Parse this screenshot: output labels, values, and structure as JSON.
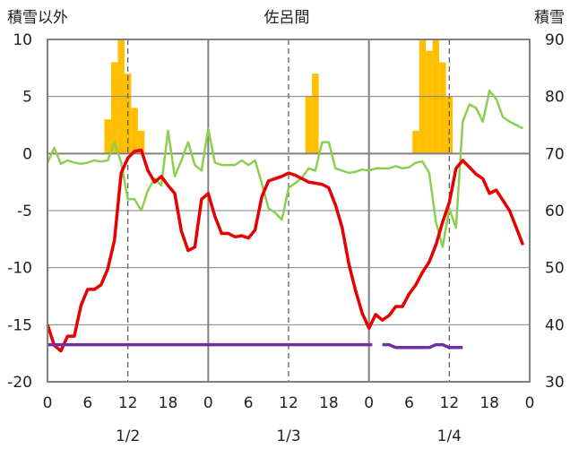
{
  "chart_data": {
    "type": "line",
    "title": "佐呂間",
    "y_left_label": "積雪以外",
    "y_right_label": "積雪",
    "y_left_range": [
      -20,
      10
    ],
    "y_left_ticks": [
      "10",
      "5",
      "0",
      "-5",
      "-10",
      "-15",
      "-20"
    ],
    "y_right_range": [
      30,
      90
    ],
    "y_right_ticks": [
      "90",
      "80",
      "70",
      "60",
      "50",
      "40",
      "30"
    ],
    "x_hour_labels": [
      "0",
      "6",
      "12",
      "18",
      "0",
      "6",
      "12",
      "18",
      "0",
      "6",
      "12",
      "18",
      "0"
    ],
    "x_date_labels": [
      "1/2",
      "1/3",
      "1/4"
    ],
    "grid": true,
    "colors": {
      "temperature": "#e60000",
      "wind": "#8ccf50",
      "precipitation": "#ffbf00",
      "snow_depth": "#7030a0",
      "grid": "#808080"
    },
    "series": [
      {
        "key": "temperature",
        "axis": "left",
        "x_hours": [
          0,
          1,
          2,
          3,
          4,
          5,
          6,
          7,
          8,
          9,
          10,
          11,
          12,
          13,
          14,
          15,
          16,
          17,
          18,
          19,
          20,
          21,
          22,
          23,
          24,
          25,
          26,
          27,
          28,
          29,
          30,
          31,
          32,
          33,
          34,
          35,
          36,
          37,
          38,
          39,
          40,
          41,
          42,
          43,
          44,
          45,
          46,
          47,
          48,
          49,
          50,
          51,
          52,
          53,
          54,
          55,
          56,
          57,
          58,
          59,
          60,
          61,
          62,
          63,
          64,
          65,
          66,
          67,
          68,
          69,
          70,
          71
        ],
        "values": [
          -15,
          -16.8,
          -17.3,
          -16,
          -16,
          -13.3,
          -11.9,
          -11.9,
          -11.5,
          -10.1,
          -7.6,
          -1.7,
          -0.4,
          0.2,
          0.3,
          -1.5,
          -2.5,
          -2,
          -2.8,
          -3.5,
          -6.8,
          -8.5,
          -8.2,
          -4,
          -3.5,
          -5.5,
          -7,
          -7,
          -7.3,
          -7.2,
          -7.4,
          -6.7,
          -3.8,
          -2.4,
          -2.2,
          -2,
          -1.7,
          -1.9,
          -2.2,
          -2.5,
          -2.6,
          -2.7,
          -3,
          -4.5,
          -6.5,
          -9.7,
          -12,
          -14,
          -15.3,
          -14.1,
          -14.6,
          -14.2,
          -13.4,
          -13.4,
          -12.3,
          -11.5,
          -10.4,
          -9.5,
          -8,
          -6,
          -4.3,
          -1.3,
          -0.6,
          -1.2,
          -1.8,
          -2.2,
          -3.5,
          -3.2,
          -4.1,
          -5,
          -6.5,
          -8
        ]
      },
      {
        "key": "wind",
        "axis": "left",
        "x_hours": [
          0,
          1,
          2,
          3,
          4,
          5,
          6,
          7,
          8,
          9,
          10,
          11,
          12,
          13,
          14,
          15,
          16,
          17,
          18,
          19,
          20,
          21,
          22,
          23,
          24,
          25,
          26,
          27,
          28,
          29,
          30,
          31,
          32,
          33,
          34,
          35,
          36,
          37,
          38,
          39,
          40,
          41,
          42,
          43,
          44,
          45,
          46,
          47,
          48,
          49,
          50,
          51,
          52,
          53,
          54,
          55,
          56,
          57,
          58,
          59,
          60,
          61,
          62,
          63,
          64,
          65,
          66,
          67,
          68,
          69,
          70,
          71
        ],
        "values": [
          -0.8,
          0.5,
          -0.9,
          -0.6,
          -0.8,
          -0.9,
          -0.8,
          -0.6,
          -0.7,
          -0.6,
          1,
          -0.8,
          -4,
          -4,
          -5,
          -3.2,
          -2.2,
          -2.8,
          2,
          -2,
          -0.6,
          1,
          -1,
          -1.5,
          2.2,
          -0.8,
          -1,
          -1,
          -1,
          -0.6,
          -1,
          -0.6,
          -2.6,
          -4.8,
          -5.2,
          -5.8,
          -3,
          -2.6,
          -2.1,
          -1.3,
          -1.5,
          1,
          1,
          -1.3,
          -1.5,
          -1.7,
          -1.6,
          -1.4,
          -1.5,
          -1.3,
          -1.3,
          -1.3,
          -1.1,
          -1.3,
          -1.2,
          -0.8,
          -0.7,
          -1.7,
          -6,
          -8.2,
          -4.8,
          -6.5,
          2.8,
          4.3,
          4,
          2.8,
          5.5,
          4.8,
          3.2,
          2.8,
          2.5,
          2.2
        ]
      },
      {
        "key": "snow_depth",
        "axis": "right",
        "segments": [
          {
            "x_hours": [
              0,
              48.5
            ],
            "values": [
              36.5,
              36.5
            ]
          },
          {
            "x_hours": [
              50,
              51,
              52,
              53,
              54,
              55,
              56,
              57,
              58,
              59,
              60,
              61,
              62
            ],
            "values": [
              36.5,
              36.5,
              36,
              36,
              36,
              36,
              36,
              36,
              36.5,
              36.5,
              36,
              36,
              36
            ]
          }
        ]
      },
      {
        "key": "precipitation",
        "axis": "left",
        "type": "bar",
        "x_hours": [
          9,
          10,
          11,
          12,
          13,
          14,
          39,
          40,
          55,
          56,
          57,
          58,
          59,
          60
        ],
        "values": [
          3,
          8,
          10,
          7,
          4,
          2,
          5,
          7,
          2,
          10,
          9,
          10,
          8,
          5
        ]
      }
    ]
  }
}
